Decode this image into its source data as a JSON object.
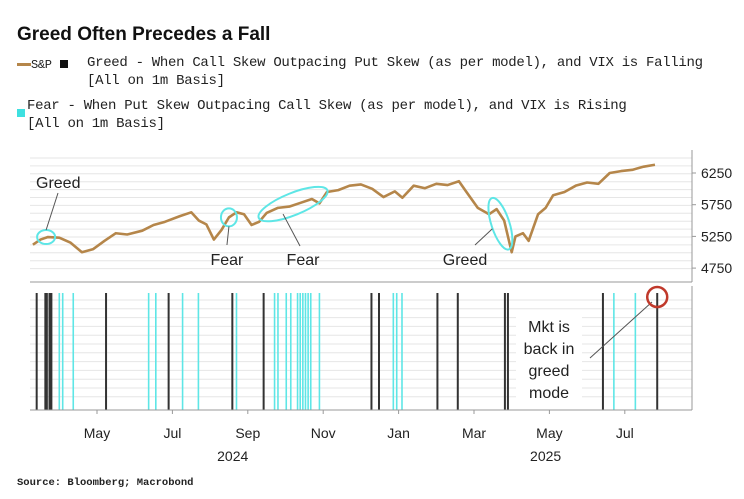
{
  "title": "Greed Often Precedes a Fall",
  "source": "Source: Bloomberg; Macrobond",
  "legend": {
    "sp_label": "S&P",
    "greed_line1": "Greed - When Call Skew Outpacing Put Skew (as per model), and VIX is Falling",
    "greed_line2": "[All on 1m Basis]",
    "fear_line1": "Fear - When Put Skew Outpacing Call Skew (as per model), and VIX is Rising",
    "fear_line2": "[All on 1m Basis]"
  },
  "colors": {
    "sp": "#b5864a",
    "greed": "#333333",
    "fear": "#5ee6e6",
    "highlight": "#c0392b"
  },
  "chart_data": {
    "type": "line",
    "title": "Greed Often Precedes a Fall",
    "x_unit": "months since Jan 2024",
    "xlim": [
      2.2,
      19.7
    ],
    "ylim": [
      4560,
      6610
    ],
    "y_ticks": [
      6250,
      5750,
      5250,
      4750
    ],
    "x_ticks": [
      {
        "m": 4,
        "label": "May"
      },
      {
        "m": 6,
        "label": "Jul"
      },
      {
        "m": 8,
        "label": "Sep"
      },
      {
        "m": 10,
        "label": "Nov"
      },
      {
        "m": 12,
        "label": "Jan"
      },
      {
        "m": 14,
        "label": "Mar"
      },
      {
        "m": 16,
        "label": "May"
      },
      {
        "m": 18,
        "label": "Jul"
      }
    ],
    "year_labels": [
      {
        "m": 7.6,
        "label": "2024"
      },
      {
        "m": 15.9,
        "label": "2025"
      }
    ],
    "series": [
      {
        "name": "S&P",
        "x": [
          2.3,
          2.5,
          2.7,
          3.0,
          3.3,
          3.6,
          3.9,
          4.2,
          4.5,
          4.8,
          5.2,
          5.5,
          5.8,
          6.2,
          6.5,
          6.7,
          6.9,
          7.1,
          7.3,
          7.5,
          7.7,
          7.9,
          8.1,
          8.3,
          8.5,
          8.8,
          9.1,
          9.4,
          9.7,
          9.9,
          10.1,
          10.4,
          10.7,
          11.0,
          11.3,
          11.6,
          11.9,
          12.1,
          12.4,
          12.7,
          13.0,
          13.3,
          13.6,
          13.8,
          14.1,
          14.4,
          14.6,
          14.8,
          15.0,
          15.1,
          15.3,
          15.45,
          15.7,
          15.9,
          16.1,
          16.4,
          16.7,
          17.0,
          17.3,
          17.6,
          17.9,
          18.2,
          18.5,
          18.8
        ],
        "y": [
          5120,
          5200,
          5240,
          5230,
          5150,
          5000,
          5050,
          5180,
          5300,
          5280,
          5340,
          5430,
          5480,
          5570,
          5630,
          5500,
          5440,
          5200,
          5350,
          5550,
          5630,
          5600,
          5430,
          5480,
          5620,
          5700,
          5720,
          5780,
          5840,
          5770,
          5950,
          5980,
          6050,
          6070,
          6000,
          5870,
          5960,
          5860,
          6050,
          6010,
          6080,
          6060,
          6120,
          5950,
          5700,
          5600,
          5680,
          5500,
          5000,
          5250,
          5300,
          5180,
          5600,
          5700,
          5900,
          5950,
          6050,
          6100,
          6080,
          6250,
          6280,
          6300,
          6350,
          6380
        ]
      }
    ],
    "signals": {
      "greed": [
        2.4,
        2.63,
        2.67,
        2.74,
        2.79,
        4.24,
        5.9,
        7.59,
        8.42,
        11.28,
        11.48,
        13.03,
        13.57,
        14.82,
        14.9,
        17.42,
        18.86
      ],
      "fear": [
        3.0,
        3.09,
        3.37,
        5.37,
        5.56,
        6.27,
        6.69,
        7.7,
        8.71,
        8.8,
        9.02,
        9.14,
        9.32,
        9.39,
        9.46,
        9.53,
        9.6,
        9.67,
        9.9,
        11.86,
        11.95,
        12.09,
        17.71,
        18.28
      ]
    },
    "annotations": [
      {
        "text": "Greed",
        "m": 2.65,
        "v": 5240
      },
      {
        "text": "Fear",
        "m": 7.5,
        "v": 5550
      },
      {
        "text": "Fear",
        "m": 9.2,
        "v": 5760
      },
      {
        "text": "Greed",
        "m": 14.7,
        "v": 5450
      },
      {
        "text": "Mkt is back in greed mode",
        "lines": [
          "Mkt is",
          "back in",
          "greed",
          "mode"
        ],
        "m": 18.86
      }
    ]
  }
}
